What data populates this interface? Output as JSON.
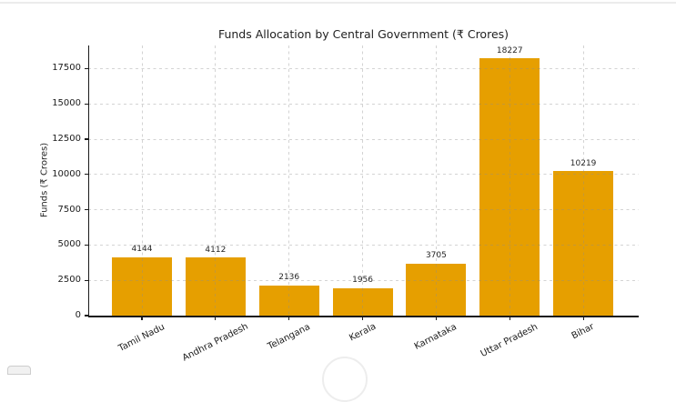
{
  "chart_data": {
    "type": "bar",
    "title": "Funds Allocation by Central Government (₹ Crores)",
    "ylabel": "Funds (₹ Crores)",
    "xlabel": "",
    "categories": [
      "Tamil Nadu",
      "Andhra Pradesh",
      "Telangana",
      "Kerala",
      "Karnataka",
      "Uttar Pradesh",
      "Bihar"
    ],
    "values": [
      4144,
      4112,
      2136,
      1956,
      3705,
      18227,
      10219
    ],
    "bar_value_labels": [
      "4144",
      "4112",
      "2136",
      "1956",
      "3705",
      "18227",
      "10219"
    ],
    "yticks": [
      0,
      2500,
      5000,
      7500,
      10000,
      12500,
      15000,
      17500
    ],
    "ytick_labels": [
      "0",
      "2500",
      "5000",
      "7500",
      "10000",
      "12500",
      "15000",
      "17500"
    ],
    "ylim": [
      0,
      19138
    ],
    "grid": true,
    "grid_style": "dashed",
    "grid_above_bars": true,
    "bar_color": "#E69F00",
    "axis_color": "#1a1a1a",
    "xtick_label_rotation_deg": -27,
    "legend": null
  }
}
